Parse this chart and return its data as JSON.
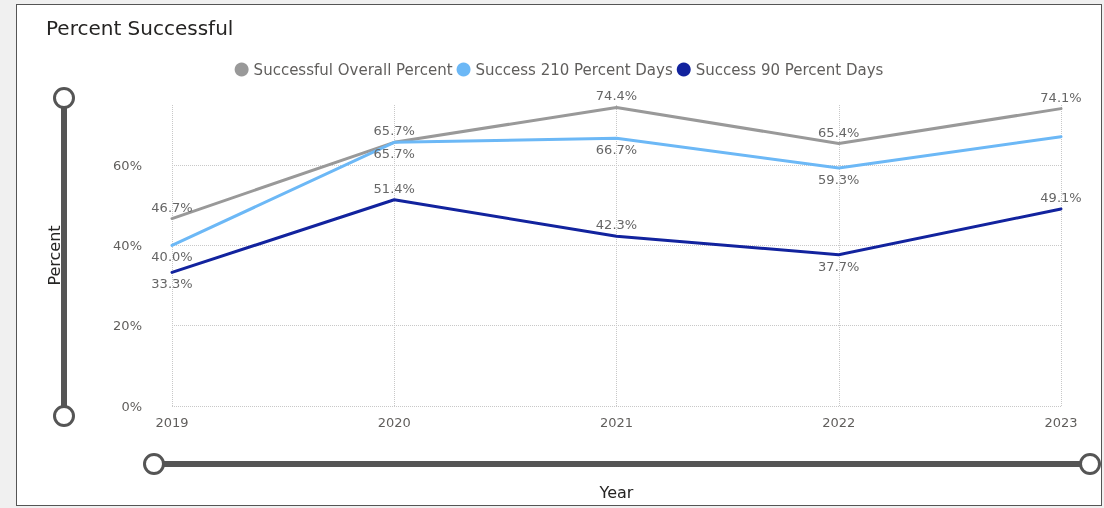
{
  "chart_data": {
    "type": "line",
    "title": "Percent Successful",
    "xlabel": "Year",
    "ylabel": "Percent",
    "categories": [
      "2019",
      "2020",
      "2021",
      "2022",
      "2023"
    ],
    "series": [
      {
        "name": "Successful Overall Percent",
        "color": "#999999",
        "values": [
          46.7,
          65.7,
          74.4,
          65.4,
          74.1
        ],
        "value_labels": [
          "46.7%",
          "65.7%",
          "74.4%",
          "65.4%",
          "74.1%"
        ]
      },
      {
        "name": "Success 210 Percent Days",
        "color": "#6cb8f6",
        "values": [
          40.0,
          65.7,
          66.7,
          59.3,
          67.1
        ],
        "value_labels": [
          "40.0%",
          "65.7%",
          "66.7%",
          "59.3%",
          null
        ]
      },
      {
        "name": "Success 90 Percent Days",
        "color": "#12239e",
        "values": [
          33.3,
          51.4,
          42.3,
          37.7,
          49.1
        ],
        "value_labels": [
          "33.3%",
          "51.4%",
          "42.3%",
          "37.7%",
          "49.1%"
        ]
      }
    ],
    "ylim": [
      0,
      75
    ],
    "yticks": [
      {
        "value": 0,
        "label": "0%"
      },
      {
        "value": 20,
        "label": "20%"
      },
      {
        "value": 40,
        "label": "40%"
      },
      {
        "value": 60,
        "label": "60%"
      }
    ],
    "grid": true,
    "legend": "top",
    "marker": "none",
    "line_style": "solid"
  }
}
